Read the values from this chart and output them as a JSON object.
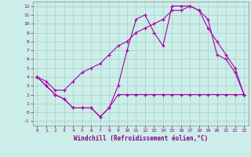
{
  "xlabel": "Windchill (Refroidissement éolien,°C)",
  "bg_color": "#cceee8",
  "grid_color": "#aacccc",
  "line_color": "#aa00aa",
  "xlim": [
    -0.5,
    23.5
  ],
  "ylim": [
    -1.5,
    12.5
  ],
  "xticks": [
    0,
    1,
    2,
    3,
    4,
    5,
    6,
    7,
    8,
    9,
    10,
    11,
    12,
    13,
    14,
    15,
    16,
    17,
    18,
    19,
    20,
    21,
    22,
    23
  ],
  "yticks": [
    -1,
    0,
    1,
    2,
    3,
    4,
    5,
    6,
    7,
    8,
    9,
    10,
    11,
    12
  ],
  "line1_x": [
    0,
    1,
    2,
    3,
    4,
    5,
    6,
    7,
    8,
    9,
    10,
    11,
    12,
    13,
    14,
    15,
    16,
    17,
    18,
    19,
    20,
    21,
    22,
    23
  ],
  "line1_y": [
    4.0,
    3.0,
    2.0,
    1.5,
    0.5,
    0.5,
    0.5,
    -0.5,
    0.5,
    3.0,
    7.0,
    10.5,
    11.0,
    9.0,
    7.5,
    12.0,
    12.0,
    12.0,
    11.5,
    10.5,
    6.5,
    6.0,
    4.5,
    2.0
  ],
  "line2_x": [
    0,
    1,
    2,
    3,
    4,
    5,
    6,
    7,
    8,
    9,
    10,
    11,
    12,
    13,
    14,
    15,
    16,
    17,
    18,
    19,
    20,
    21,
    22,
    23
  ],
  "line2_y": [
    4.0,
    3.5,
    2.5,
    2.5,
    3.5,
    4.5,
    5.0,
    5.5,
    6.5,
    7.5,
    8.0,
    9.0,
    9.5,
    10.0,
    10.5,
    11.5,
    11.5,
    12.0,
    11.5,
    9.5,
    8.0,
    6.5,
    5.0,
    2.0
  ],
  "line3_x": [
    0,
    1,
    2,
    3,
    4,
    5,
    6,
    7,
    8,
    9,
    10,
    11,
    12,
    13,
    14,
    15,
    16,
    17,
    18,
    19,
    20,
    21,
    22,
    23
  ],
  "line3_y": [
    4.0,
    3.0,
    2.0,
    1.5,
    0.5,
    0.5,
    0.5,
    -0.5,
    0.5,
    2.0,
    2.0,
    2.0,
    2.0,
    2.0,
    2.0,
    2.0,
    2.0,
    2.0,
    2.0,
    2.0,
    2.0,
    2.0,
    2.0,
    2.0
  ]
}
